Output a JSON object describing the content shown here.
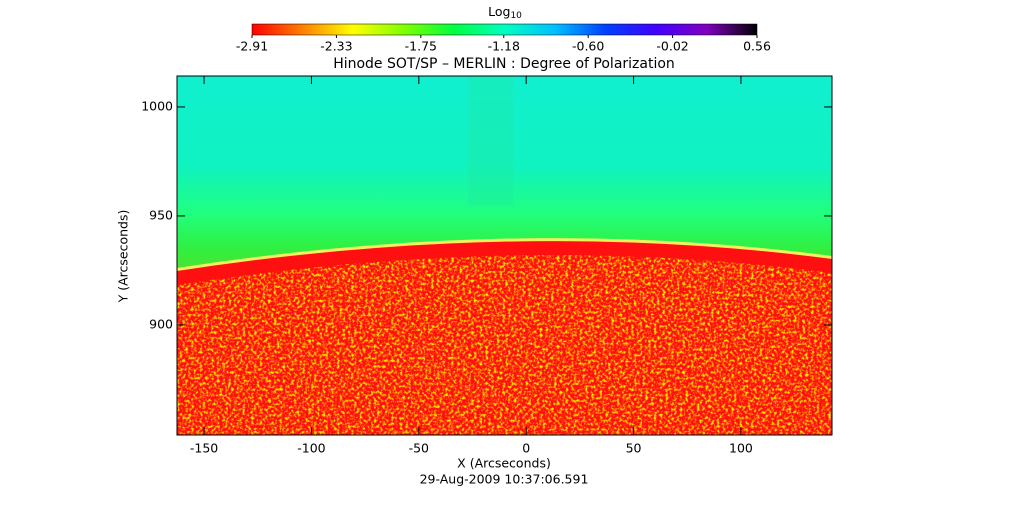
{
  "chart_data": {
    "type": "image",
    "title": "Hinode SOT/SP – MERLIN : Degree of Polarization",
    "xlabel": "X (Arcseconds)",
    "ylabel": "Y (Arcseconds)",
    "date": "29-Aug-2009 10:37:06.591",
    "xlim": [
      -162.6,
      142.4
    ],
    "ylim": [
      849.5,
      1014.2
    ],
    "xticks": [
      -150,
      -100,
      -50,
      0,
      50,
      100
    ],
    "yticks": [
      900,
      950,
      1000
    ],
    "grid": false,
    "colorbar": {
      "label": "Log",
      "label_sub": "10",
      "clim": [
        -2.91,
        0.56
      ],
      "ticks": [
        -2.91,
        -2.33,
        -1.75,
        -1.18,
        {
          "value": -0.6,
          "label": "-0.60"
        },
        -0.02,
        0.56
      ],
      "colormap": [
        "#ff0000",
        "#ff8000",
        "#ffff00",
        "#80ff00",
        "#00ff40",
        "#00ffc0",
        "#00c0ff",
        "#0040ff",
        "#4000ff",
        "#8000c0",
        "#000000"
      ]
    }
  }
}
